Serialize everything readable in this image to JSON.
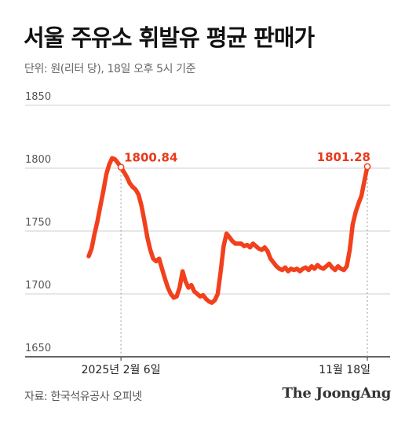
{
  "title": "서울 주유소 휘발유 평균 판매가",
  "subtitle": "단위: 원(리터 당), 18일 오후 5시 기준",
  "source": "자료: 한국석유공사 오피넷",
  "brand": "The JoongAng",
  "colors": {
    "line": "#f2401d",
    "grid": "#cfcfcf",
    "axis": "#333333",
    "label_peak": "#e8391a"
  },
  "chart_data": {
    "type": "line",
    "ylim": [
      1650,
      1850
    ],
    "yticks": [
      "1650",
      "1700",
      "1750",
      "1800",
      "1850"
    ],
    "x_labels": [
      "2025년 2월 6일",
      "11월 18일"
    ],
    "annotations": [
      {
        "label": "1800.84",
        "x_index": 11,
        "value": 1800.84
      },
      {
        "label": "1801.28",
        "x_index": 95,
        "value": 1801.28
      }
    ],
    "series": [
      {
        "values": [
          1730,
          1736,
          1748,
          1758,
          1770,
          1782,
          1795,
          1803,
          1808,
          1807,
          1804,
          1800.84,
          1797,
          1793,
          1788,
          1785,
          1783,
          1779,
          1770,
          1758,
          1745,
          1735,
          1728,
          1726,
          1728,
          1720,
          1712,
          1705,
          1700,
          1697,
          1698,
          1705,
          1718,
          1710,
          1705,
          1707,
          1702,
          1700,
          1698,
          1699,
          1696,
          1694,
          1693,
          1695,
          1700,
          1718,
          1738,
          1748,
          1745,
          1742,
          1740,
          1740,
          1740,
          1738,
          1739,
          1737,
          1740,
          1738,
          1736,
          1735,
          1737,
          1734,
          1728,
          1725,
          1722,
          1720,
          1719,
          1721,
          1718,
          1720,
          1719,
          1720,
          1718,
          1720,
          1721,
          1719,
          1722,
          1720,
          1723,
          1721,
          1720,
          1722,
          1724,
          1721,
          1719,
          1722,
          1720,
          1719,
          1722,
          1735,
          1755,
          1765,
          1772,
          1778,
          1790,
          1801.28
        ]
      }
    ]
  }
}
